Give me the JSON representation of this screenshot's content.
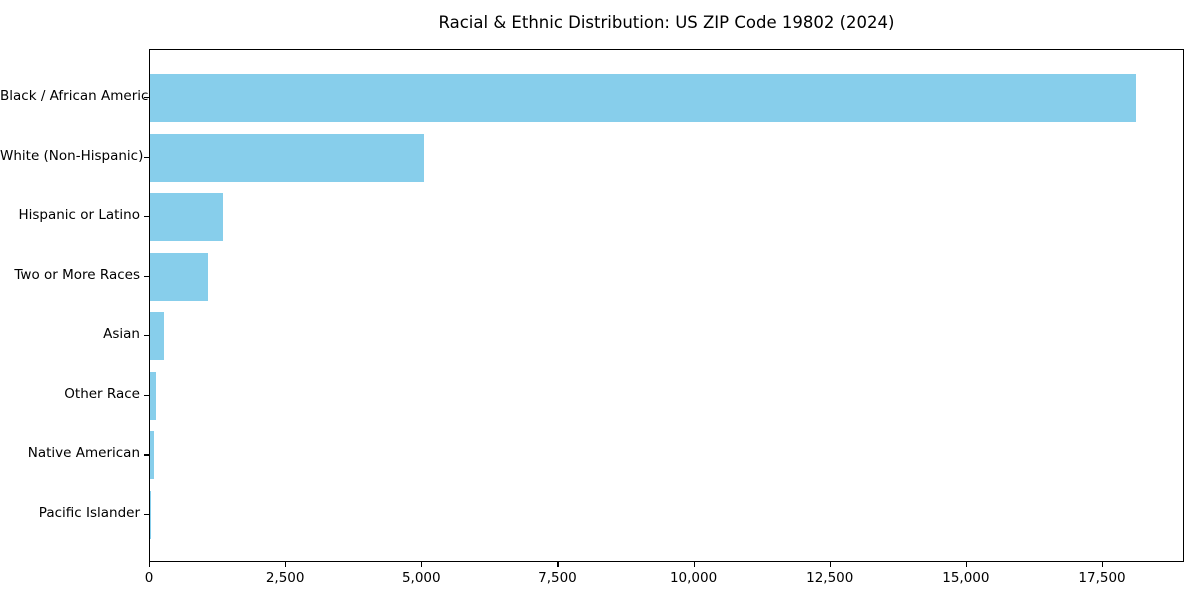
{
  "chart_data": {
    "type": "bar",
    "orientation": "horizontal",
    "title": "Racial & Ethnic Distribution: US ZIP Code 19802 (2024)",
    "categories": [
      "Black / African American",
      "White (Non-Hispanic)",
      "Hispanic or Latino",
      "Two or More Races",
      "Asian",
      "Other Race",
      "Native American",
      "Pacific Islander"
    ],
    "values": [
      18100,
      5040,
      1340,
      1060,
      260,
      110,
      70,
      10
    ],
    "xlabel": "",
    "ylabel": "",
    "xlim": [
      0,
      19005
    ],
    "x_ticks": [
      0,
      2500,
      5000,
      7500,
      10000,
      12500,
      15000,
      17500
    ],
    "x_tick_labels": [
      "0",
      "2,500",
      "5,000",
      "7,500",
      "10,000",
      "12,500",
      "15,000",
      "17,500"
    ],
    "bar_color": "#87CEEB",
    "axis_color": "#000000",
    "text_color": "#000000",
    "background_color": "#FFFFFF",
    "grid": false,
    "legend": null
  }
}
